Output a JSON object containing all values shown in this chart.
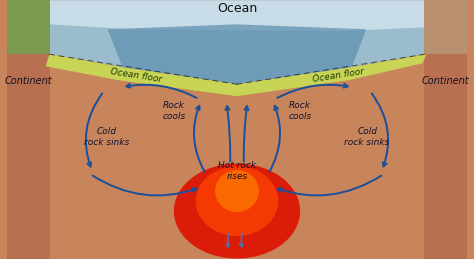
{
  "title": "Ocean",
  "bg_color": "#c8845a",
  "ocean_color": "#7ab8d4",
  "ocean_floor_color": "#c8d455",
  "mantle_color": "#c8785a",
  "hot_color": "#ff2200",
  "arrow_color": "#1a4f9a",
  "continent_left_text": "Continent",
  "continent_right_text": "Continent",
  "ocean_floor_left_text": "Ocean floor",
  "ocean_floor_right_text": "Ocean floor",
  "rock_cools_left": "Rock\ncools",
  "rock_cools_right": "Rock\ncools",
  "cold_sinks_left": "Cold\nrock sinks",
  "cold_sinks_right": "Cold\nrock sinks",
  "hot_rises": "Hot rock\nrises",
  "figsize": [
    4.74,
    2.59
  ],
  "dpi": 100
}
